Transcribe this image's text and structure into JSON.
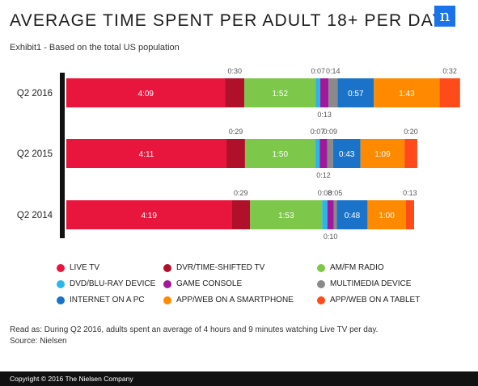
{
  "title": "AVERAGE TIME SPENT PER ADULT 18+ PER DAY",
  "subtitle": "Exhibit1 - Based on the total US population",
  "logo_text": "n",
  "note_line1": "Read as: During Q2 2016, adults spent an average of 4 hours and 9 minutes watching Live TV per day.",
  "note_line2": "Source: Nielsen",
  "footer": "Copyright © 2016 The Nielsen Company",
  "chart_data": {
    "type": "bar",
    "orientation": "horizontal",
    "stacked": true,
    "categories": [
      "Q2 2016",
      "Q2 2015",
      "Q2 2014"
    ],
    "series": [
      {
        "name": "LIVE TV",
        "color": "#e8163c",
        "values": [
          249,
          251,
          259
        ],
        "labels": [
          "4:09",
          "4:11",
          "4:19"
        ]
      },
      {
        "name": "DVR/TIME-SHIFTED TV",
        "color": "#b0102a",
        "values": [
          30,
          29,
          29
        ],
        "labels": [
          "0:30",
          "0:29",
          "0:29"
        ]
      },
      {
        "name": "AM/FM RADIO",
        "color": "#7dc74a",
        "values": [
          112,
          110,
          113
        ],
        "labels": [
          "1:52",
          "1:50",
          "1:53"
        ]
      },
      {
        "name": "DVD/BLU-RAY DEVICE",
        "color": "#29b6e8",
        "values": [
          7,
          7,
          8
        ],
        "labels": [
          "0:07",
          "0:07",
          "0:08"
        ]
      },
      {
        "name": "GAME CONSOLE",
        "color": "#a0199b",
        "values": [
          13,
          12,
          10
        ],
        "labels": [
          "0:13",
          "0:12",
          "0:10"
        ]
      },
      {
        "name": "MULTIMEDIA DEVICE",
        "color": "#8a8a8a",
        "values": [
          14,
          9,
          5
        ],
        "labels": [
          "0:14",
          "0:09",
          "0:05"
        ]
      },
      {
        "name": "INTERNET ON A PC",
        "color": "#1a73c8",
        "values": [
          57,
          43,
          48
        ],
        "labels": [
          "0:57",
          "0:43",
          "0:48"
        ]
      },
      {
        "name": "APP/WEB ON A SMARTPHONE",
        "color": "#ff8a00",
        "values": [
          103,
          69,
          60
        ],
        "labels": [
          "1:43",
          "1:09",
          "1:00"
        ]
      },
      {
        "name": "APP/WEB ON A TABLET",
        "color": "#ff4a1a",
        "values": [
          32,
          20,
          13
        ],
        "labels": [
          "0:32",
          "0:20",
          "0:13"
        ]
      }
    ],
    "units": "minutes",
    "legend_position": "bottom"
  }
}
